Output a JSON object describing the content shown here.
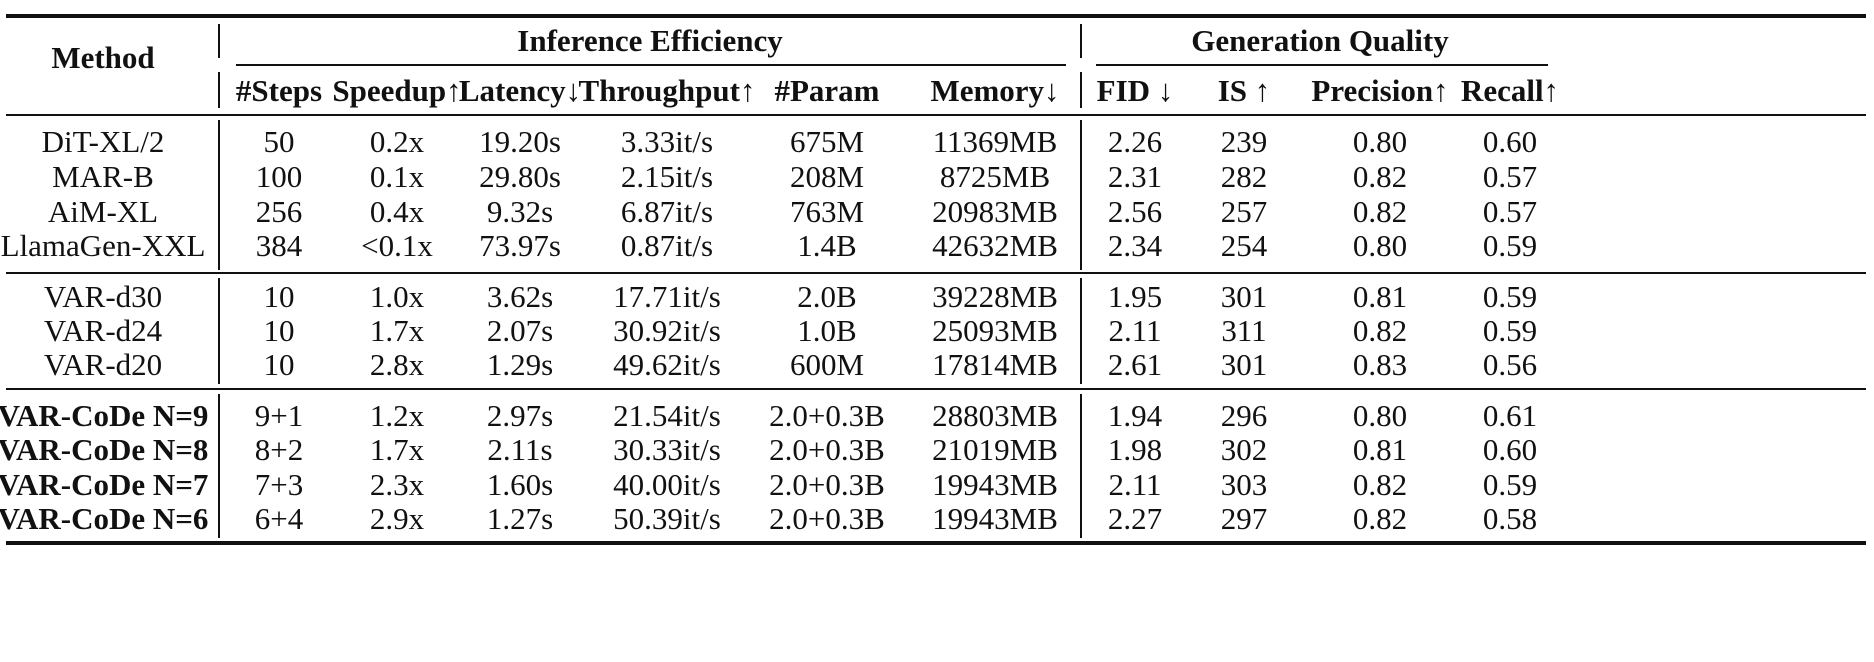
{
  "table": {
    "groups": {
      "method": "Method",
      "efficiency": "Inference Efficiency",
      "quality": "Generation Quality"
    },
    "columns": [
      "#Steps",
      "Speedup↑",
      "Latency↓",
      "Throughput↑",
      "#Param",
      "Memory↓",
      "FID ↓",
      "IS ↑",
      "Precision↑",
      "Recall↑"
    ],
    "sections": [
      {
        "rows": [
          {
            "method": "DiT-XL/2",
            "bold": false,
            "cells": [
              "50",
              "0.2x",
              "19.20s",
              "3.33it/s",
              "675M",
              "11369MB",
              "2.26",
              "239",
              "0.80",
              "0.60"
            ]
          },
          {
            "method": "MAR-B",
            "bold": false,
            "cells": [
              "100",
              "0.1x",
              "29.80s",
              "2.15it/s",
              "208M",
              "8725MB",
              "2.31",
              "282",
              "0.82",
              "0.57"
            ]
          },
          {
            "method": "AiM-XL",
            "bold": false,
            "cells": [
              "256",
              "0.4x",
              "9.32s",
              "6.87it/s",
              "763M",
              "20983MB",
              "2.56",
              "257",
              "0.82",
              "0.57"
            ]
          },
          {
            "method": "LlamaGen-XXL",
            "bold": false,
            "cells": [
              "384",
              "<0.1x",
              "73.97s",
              "0.87it/s",
              "1.4B",
              "42632MB",
              "2.34",
              "254",
              "0.80",
              "0.59"
            ]
          }
        ]
      },
      {
        "rows": [
          {
            "method": "VAR-d30",
            "bold": false,
            "cells": [
              "10",
              "1.0x",
              "3.62s",
              "17.71it/s",
              "2.0B",
              "39228MB",
              "1.95",
              "301",
              "0.81",
              "0.59"
            ]
          },
          {
            "method": "VAR-d24",
            "bold": false,
            "cells": [
              "10",
              "1.7x",
              "2.07s",
              "30.92it/s",
              "1.0B",
              "25093MB",
              "2.11",
              "311",
              "0.82",
              "0.59"
            ]
          },
          {
            "method": "VAR-d20",
            "bold": false,
            "cells": [
              "10",
              "2.8x",
              "1.29s",
              "49.62it/s",
              "600M",
              "17814MB",
              "2.61",
              "301",
              "0.83",
              "0.56"
            ]
          }
        ]
      },
      {
        "rows": [
          {
            "method": "VAR-CoDe N=9",
            "bold": true,
            "cells": [
              "9+1",
              "1.2x",
              "2.97s",
              "21.54it/s",
              "2.0+0.3B",
              "28803MB",
              "1.94",
              "296",
              "0.80",
              "0.61"
            ]
          },
          {
            "method": "VAR-CoDe N=8",
            "bold": true,
            "cells": [
              "8+2",
              "1.7x",
              "2.11s",
              "30.33it/s",
              "2.0+0.3B",
              "21019MB",
              "1.98",
              "302",
              "0.81",
              "0.60"
            ]
          },
          {
            "method": "VAR-CoDe N=7",
            "bold": true,
            "cells": [
              "7+3",
              "2.3x",
              "1.60s",
              "40.00it/s",
              "2.0+0.3B",
              "19943MB",
              "2.11",
              "303",
              "0.82",
              "0.59"
            ]
          },
          {
            "method": "VAR-CoDe N=6",
            "bold": true,
            "cells": [
              "6+4",
              "2.9x",
              "1.27s",
              "50.39it/s",
              "2.0+0.3B",
              "19943MB",
              "2.27",
              "297",
              "0.82",
              "0.58"
            ]
          }
        ]
      }
    ]
  }
}
